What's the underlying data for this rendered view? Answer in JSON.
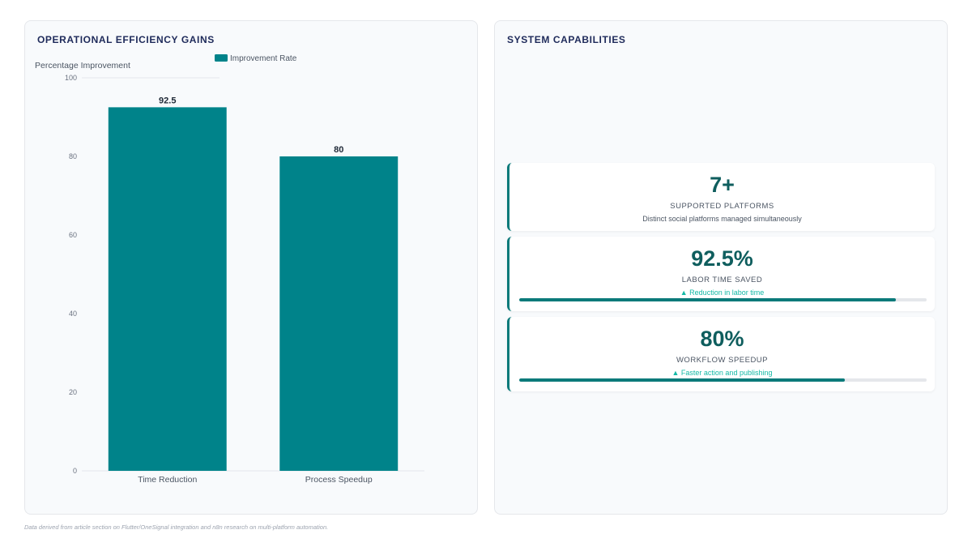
{
  "left_panel": {
    "title": "OPERATIONAL EFFICIENCY GAINS"
  },
  "chart_data": {
    "type": "bar",
    "categories": [
      "Time Reduction",
      "Process Speedup"
    ],
    "series": [
      {
        "name": "Improvement Rate",
        "values": [
          92.5,
          80
        ],
        "color": "#00838a"
      }
    ],
    "ylabel": "Percentage Improvement",
    "ylim": [
      0,
      100
    ],
    "yticks": [
      0,
      20,
      40,
      60,
      80,
      100
    ],
    "legend": "top-center",
    "grid": false,
    "data_labels": [
      "92.5",
      "80"
    ]
  },
  "right_panel": {
    "title": "SYSTEM CAPABILITIES",
    "kpis": [
      {
        "value": "7+",
        "label": "SUPPORTED PLATFORMS",
        "sub": "Distinct social platforms managed simultaneously"
      },
      {
        "value": "92.5%",
        "label": "LABOR TIME SAVED",
        "sub": "▲ Reduction in labor time",
        "progress": 92.5
      },
      {
        "value": "80%",
        "label": "WORKFLOW SPEEDUP",
        "sub": "▲ Faster action and publishing",
        "progress": 80
      }
    ]
  },
  "footnote": "Data derived from article section on Flutter/OneSignal integration and n8n research on multi-platform automation.",
  "colors": {
    "accent": "#0b7a7a",
    "bar": "#00838a",
    "title": "#1e2a5a",
    "positive": "#14b8a6"
  }
}
